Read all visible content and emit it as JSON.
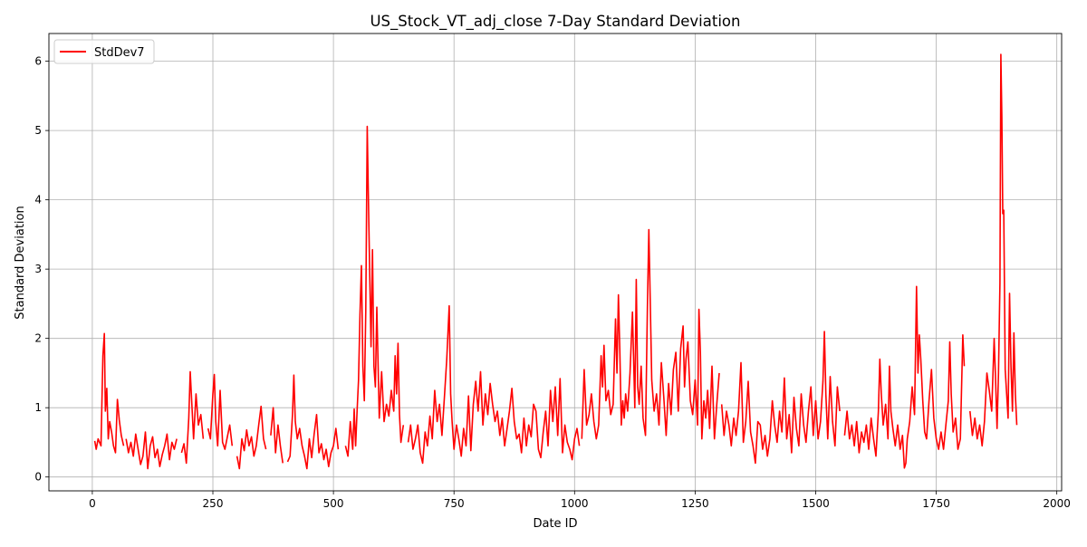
{
  "chart_data": {
    "type": "line",
    "title": "US_Stock_VT_adj_close 7-Day Standard Deviation",
    "xlabel": "Date ID",
    "ylabel": "Standard Deviation",
    "xlim": [
      -90,
      2010
    ],
    "ylim": [
      -0.2,
      6.4
    ],
    "xticks": [
      0,
      250,
      500,
      750,
      1000,
      1250,
      1500,
      1750,
      2000
    ],
    "yticks": [
      0,
      1,
      2,
      3,
      4,
      5,
      6
    ],
    "grid": true,
    "legend_position": "top-left",
    "series": [
      {
        "name": "StdDev7",
        "color": "#ff0000",
        "segments": [
          {
            "x": [
              5,
              8,
              12,
              18,
              22,
              25,
              27,
              30,
              33,
              36,
              40,
              44,
              48,
              52,
              56,
              60,
              65
            ],
            "y": [
              0.52,
              0.4,
              0.55,
              0.45,
              1.75,
              2.07,
              0.95,
              1.28,
              0.55,
              0.8,
              0.65,
              0.45,
              0.35,
              1.12,
              0.82,
              0.6,
              0.45
            ]
          },
          {
            "x": [
              70,
              75,
              80,
              85,
              90,
              95,
              100,
              105,
              110,
              115,
              120,
              125,
              130,
              135,
              140,
              145,
              150,
              155,
              160,
              165,
              170,
              175
            ],
            "y": [
              0.55,
              0.35,
              0.5,
              0.3,
              0.62,
              0.4,
              0.18,
              0.3,
              0.65,
              0.12,
              0.45,
              0.58,
              0.28,
              0.4,
              0.15,
              0.32,
              0.45,
              0.62,
              0.25,
              0.5,
              0.4,
              0.55
            ]
          },
          {
            "x": [
              185,
              190,
              195,
              200,
              203,
              206,
              210,
              215,
              220,
              225,
              230
            ],
            "y": [
              0.35,
              0.48,
              0.2,
              0.85,
              1.52,
              1.1,
              0.55,
              1.2,
              0.75,
              0.9,
              0.55
            ]
          },
          {
            "x": [
              240,
              245,
              250,
              253,
              256,
              260,
              265,
              270,
              275,
              280,
              285,
              290
            ],
            "y": [
              0.7,
              0.55,
              1.2,
              1.48,
              0.8,
              0.45,
              1.25,
              0.5,
              0.4,
              0.58,
              0.75,
              0.45
            ]
          },
          {
            "x": [
              300,
              305,
              310,
              315,
              320,
              325,
              330,
              335,
              340,
              345,
              350,
              355,
              360
            ],
            "y": [
              0.3,
              0.12,
              0.55,
              0.38,
              0.68,
              0.45,
              0.58,
              0.3,
              0.45,
              0.75,
              1.02,
              0.55,
              0.4
            ]
          },
          {
            "x": [
              370,
              375,
              380,
              385,
              390,
              395
            ],
            "y": [
              0.6,
              1.0,
              0.35,
              0.75,
              0.45,
              0.2
            ]
          },
          {
            "x": [
              405,
              410,
              415,
              418,
              421,
              425,
              430,
              435,
              440,
              445,
              450,
              455,
              460,
              465,
              470,
              475,
              480,
              485,
              490,
              495,
              500,
              505,
              510
            ],
            "y": [
              0.22,
              0.3,
              0.9,
              1.47,
              0.8,
              0.55,
              0.7,
              0.45,
              0.3,
              0.12,
              0.55,
              0.28,
              0.62,
              0.9,
              0.35,
              0.48,
              0.25,
              0.4,
              0.15,
              0.35,
              0.45,
              0.7,
              0.4
            ]
          },
          {
            "x": [
              525,
              530,
              535,
              540,
              543,
              546,
              549,
              552,
              555,
              558,
              561,
              564,
              567,
              570,
              572,
              575,
              578,
              581,
              584,
              587,
              590,
              595,
              600,
              605,
              610,
              615,
              620,
              625,
              628,
              631,
              634,
              637,
              640,
              645
            ],
            "y": [
              0.45,
              0.3,
              0.8,
              0.4,
              0.98,
              0.45,
              0.95,
              1.4,
              2.35,
              3.05,
              1.6,
              1.1,
              2.4,
              5.06,
              4.25,
              3.05,
              1.88,
              3.28,
              1.6,
              1.3,
              2.45,
              0.85,
              1.52,
              0.8,
              1.05,
              0.88,
              1.25,
              0.95,
              1.75,
              1.2,
              1.93,
              0.9,
              0.5,
              0.75
            ]
          },
          {
            "x": [
              655,
              660,
              665,
              670,
              675,
              680,
              685,
              690,
              695,
              700,
              705,
              710,
              715,
              720,
              725,
              730,
              735,
              740,
              743,
              746,
              750,
              755,
              760,
              765,
              770,
              775,
              780,
              785,
              790,
              795,
              800,
              805,
              810,
              815,
              820,
              825,
              830,
              835,
              840,
              845,
              850,
              855,
              860,
              865,
              870,
              875,
              880,
              885,
              890,
              895,
              900,
              905,
              910,
              915,
              920,
              925,
              930,
              935,
              940,
              945,
              950,
              955,
              960,
              965,
              970,
              975,
              980,
              985,
              990,
              995,
              1000,
              1005,
              1010
            ],
            "y": [
              0.5,
              0.75,
              0.4,
              0.55,
              0.75,
              0.35,
              0.2,
              0.65,
              0.45,
              0.88,
              0.55,
              1.25,
              0.8,
              1.05,
              0.6,
              1.15,
              1.7,
              2.47,
              1.2,
              0.8,
              0.4,
              0.75,
              0.55,
              0.3,
              0.7,
              0.45,
              1.17,
              0.38,
              1.05,
              1.38,
              0.95,
              1.52,
              0.75,
              1.2,
              0.9,
              1.35,
              1.05,
              0.8,
              0.95,
              0.6,
              0.85,
              0.45,
              0.7,
              0.95,
              1.28,
              0.8,
              0.55,
              0.62,
              0.35,
              0.85,
              0.45,
              0.75,
              0.58,
              1.05,
              0.95,
              0.4,
              0.28,
              0.65,
              0.95,
              0.45,
              1.25,
              0.8,
              1.3,
              0.6,
              1.42,
              0.35,
              0.75,
              0.5,
              0.4,
              0.25,
              0.55,
              0.7,
              0.45
            ]
          },
          {
            "x": [
              1015,
              1020,
              1025,
              1030,
              1035,
              1040,
              1045,
              1050,
              1055,
              1058,
              1061,
              1065,
              1070,
              1075,
              1080,
              1085,
              1088,
              1091,
              1094,
              1097,
              1100,
              1103,
              1106,
              1110,
              1115,
              1120,
              1125,
              1128,
              1131,
              1134,
              1138,
              1142,
              1147,
              1151,
              1154,
              1157,
              1160,
              1165,
              1170,
              1175,
              1180,
              1185,
              1190,
              1195,
              1200,
              1205,
              1210,
              1215,
              1220,
              1225,
              1228,
              1231,
              1235,
              1240,
              1245,
              1250,
              1255,
              1258,
              1261,
              1264,
              1268,
              1272,
              1276,
              1280,
              1285,
              1290,
              1295,
              1300
            ],
            "y": [
              0.55,
              1.55,
              0.75,
              0.9,
              1.2,
              0.8,
              0.55,
              0.75,
              1.75,
              1.3,
              1.9,
              1.1,
              1.25,
              0.9,
              1.05,
              2.28,
              1.5,
              2.63,
              1.8,
              0.75,
              1.1,
              0.85,
              1.2,
              0.95,
              1.5,
              2.38,
              1.0,
              2.85,
              1.3,
              1.05,
              1.6,
              0.85,
              0.6,
              2.45,
              3.57,
              2.5,
              1.4,
              0.95,
              1.2,
              0.75,
              1.65,
              1.15,
              0.6,
              1.35,
              0.9,
              1.55,
              1.8,
              0.95,
              1.85,
              2.18,
              1.3,
              1.7,
              1.95,
              1.1,
              0.9,
              1.4,
              0.75,
              2.42,
              1.8,
              0.55,
              1.1,
              0.85,
              1.25,
              0.7,
              1.6,
              0.55,
              1.05,
              1.5
            ]
          },
          {
            "x": [
              1305,
              1310,
              1315,
              1320,
              1325,
              1330,
              1335,
              1340,
              1345,
              1350,
              1355,
              1360,
              1365,
              1370,
              1375,
              1380,
              1385,
              1390,
              1395,
              1400,
              1405,
              1410,
              1415,
              1420,
              1425,
              1430,
              1435,
              1440,
              1445,
              1450,
              1455,
              1460,
              1465,
              1470,
              1475,
              1480,
              1485,
              1490,
              1495,
              1500,
              1505,
              1510,
              1515,
              1518,
              1521,
              1525,
              1530,
              1535,
              1540,
              1545,
              1550
            ],
            "y": [
              1.05,
              0.6,
              0.95,
              0.75,
              0.45,
              0.85,
              0.6,
              0.95,
              1.65,
              0.5,
              0.8,
              1.38,
              0.65,
              0.45,
              0.2,
              0.8,
              0.75,
              0.4,
              0.6,
              0.3,
              0.55,
              1.1,
              0.75,
              0.5,
              0.95,
              0.65,
              1.43,
              0.55,
              0.9,
              0.35,
              1.15,
              0.7,
              0.45,
              1.2,
              0.75,
              0.5,
              0.95,
              1.3,
              0.6,
              1.1,
              0.55,
              0.8,
              1.38,
              2.1,
              1.2,
              0.55,
              1.45,
              0.8,
              0.45,
              1.3,
              0.95
            ]
          },
          {
            "x": [
              1560,
              1565,
              1570,
              1575,
              1580,
              1585,
              1590,
              1595,
              1600,
              1605,
              1610,
              1615,
              1620,
              1625,
              1630,
              1633,
              1636,
              1640,
              1645,
              1650,
              1653,
              1656,
              1660,
              1665,
              1670,
              1675,
              1680,
              1684,
              1687,
              1690,
              1695,
              1700,
              1705,
              1709,
              1712,
              1715,
              1718,
              1722,
              1726,
              1730,
              1735,
              1740,
              1745,
              1750,
              1755,
              1760,
              1765,
              1770,
              1775,
              1778,
              1781,
              1785,
              1790,
              1795,
              1800,
              1805,
              1808
            ],
            "y": [
              0.6,
              0.95,
              0.55,
              0.75,
              0.45,
              0.8,
              0.35,
              0.65,
              0.5,
              0.75,
              0.4,
              0.85,
              0.55,
              0.3,
              0.95,
              1.7,
              1.2,
              0.75,
              1.05,
              0.55,
              1.6,
              0.95,
              0.7,
              0.45,
              0.75,
              0.4,
              0.6,
              0.13,
              0.2,
              0.55,
              0.8,
              1.3,
              0.9,
              2.75,
              1.5,
              2.05,
              1.7,
              1.1,
              0.65,
              0.55,
              1.1,
              1.55,
              0.85,
              0.55,
              0.4,
              0.65,
              0.4,
              0.75,
              1.1,
              1.95,
              1.2,
              0.65,
              0.85,
              0.4,
              0.55,
              2.05,
              1.6
            ]
          },
          {
            "x": [
              1820,
              1825,
              1830,
              1835,
              1840,
              1845,
              1850,
              1855,
              1860,
              1865,
              1870,
              1873,
              1876,
              1879,
              1882,
              1884,
              1886,
              1888,
              1890,
              1893,
              1896,
              1899,
              1902,
              1905,
              1908,
              1911,
              1914,
              1917
            ],
            "y": [
              0.95,
              0.6,
              0.85,
              0.55,
              0.75,
              0.45,
              0.8,
              1.5,
              1.25,
              0.95,
              2.0,
              1.4,
              0.7,
              1.5,
              2.8,
              6.1,
              5.2,
              3.8,
              3.85,
              1.55,
              1.2,
              0.85,
              2.65,
              1.6,
              0.95,
              2.08,
              1.2,
              0.75
            ]
          }
        ]
      }
    ]
  }
}
